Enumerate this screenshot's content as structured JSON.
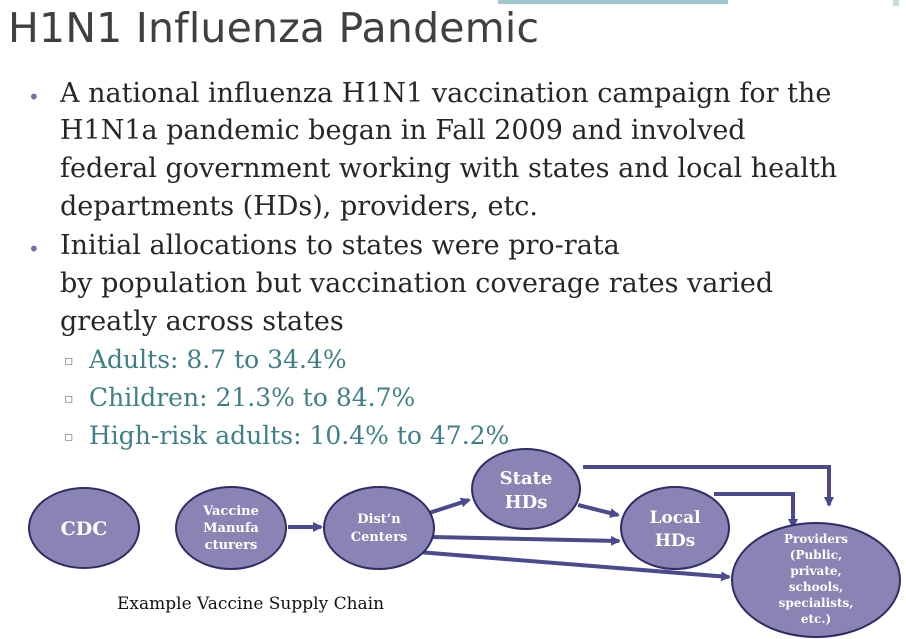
{
  "slide": {
    "title": "H1N1 Influenza Pandemic",
    "bullets": [
      {
        "lines": [
          "A national influenza H1N1 vaccination campaign for the",
          "H1N1a pandemic began in Fall 2009 and involved",
          "federal government working with states and local health",
          "departments (HDs), providers, etc."
        ]
      },
      {
        "lines": [
          "Initial allocations to states were pro-rata",
          "by population but vaccination coverage rates varied",
          "greatly across states"
        ],
        "sub_items": [
          "Adults: 8.7 to 34.4%",
          "Children: 21.3% to 84.7%",
          "High-risk adults: 10.4% to 47.2%"
        ]
      }
    ]
  },
  "diagram": {
    "nodes": {
      "cdc": [
        "CDC"
      ],
      "manufacturers": [
        "Vaccine",
        "Manufa",
        "cturers"
      ],
      "dist_centers": [
        "Dist’n",
        "Centers"
      ],
      "state_hds": [
        "State",
        "HDs"
      ],
      "local_hds": [
        "Local",
        "HDs"
      ],
      "providers": [
        "Providers",
        "(Public,",
        "private,",
        "schools,",
        "specialists,",
        "etc.)"
      ]
    },
    "caption": "Example Vaccine Supply Chain",
    "colors": {
      "node_fill": "#8a84b5",
      "node_stroke": "#2f2c66",
      "arrow": "#4b4a8e"
    }
  }
}
